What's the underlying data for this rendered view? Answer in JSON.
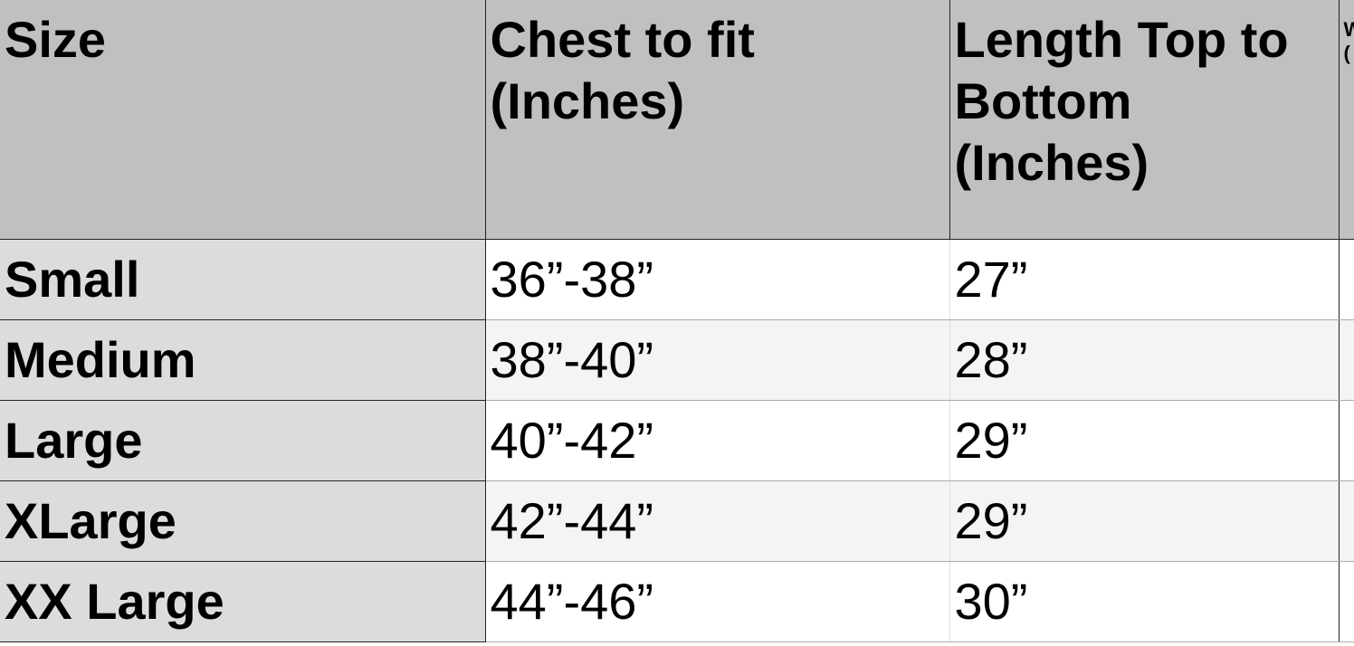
{
  "table": {
    "headers": [
      "Size",
      "Chest to fit\n(Inches)",
      "Length Top to\nBottom\n(Inches)",
      "W\n("
    ],
    "rows": [
      {
        "size": "Small",
        "chest": "36”-38”",
        "length": "27”",
        "extra": ""
      },
      {
        "size": "Medium",
        "chest": "38”-40”",
        "length": "28”",
        "extra": ""
      },
      {
        "size": "Large",
        "chest": "40”-42”",
        "length": "29”",
        "extra": ""
      },
      {
        "size": "XLarge",
        "chest": "42”-44”",
        "length": "29”",
        "extra": ""
      },
      {
        "size": "XX Large",
        "chest": "44”-46”",
        "length": "30”",
        "extra": ""
      }
    ]
  },
  "colors": {
    "header_bg": "#bfc1c0",
    "size_col_bg": "#dcdcdc",
    "alt_row_bg": "#f4f4f4"
  }
}
